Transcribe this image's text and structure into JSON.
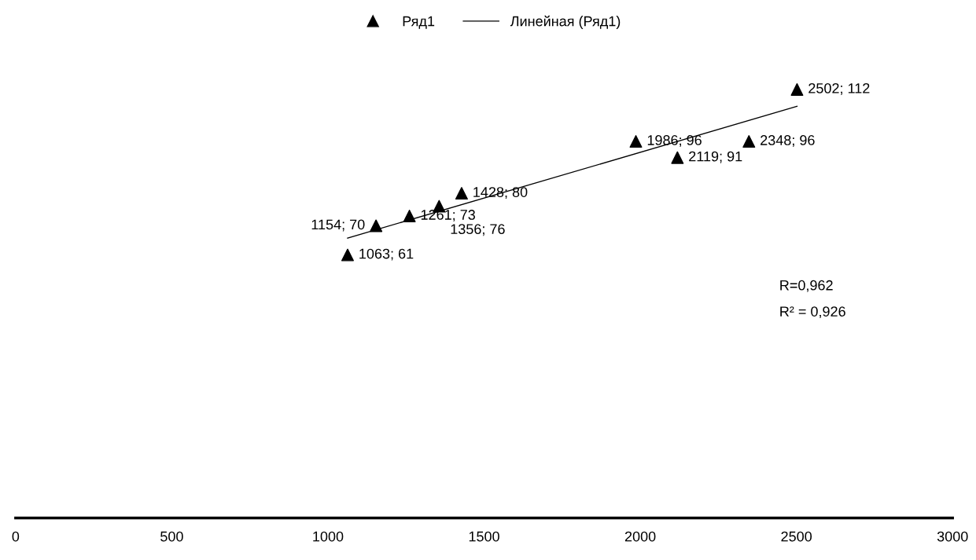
{
  "chart_data": {
    "type": "scatter",
    "series": [
      {
        "name": "Ряд1",
        "color": "#000000",
        "marker": "triangle",
        "x": [
          1063,
          1154,
          1261,
          1356,
          1428,
          1986,
          2119,
          2348,
          2502
        ],
        "values": [
          61,
          70,
          73,
          76,
          80,
          96,
          91,
          96,
          112
        ],
        "value_labels": [
          "1063; 61",
          "1154; 70",
          "1261; 73",
          "1356; 76",
          "1428; 80",
          "1986; 96",
          "2119; 91",
          "2348; 96",
          "2502; 112"
        ]
      },
      {
        "name": "Линейная (Ряд1)",
        "type": "line",
        "color": "#000000",
        "marker": "none",
        "line_style": "solid",
        "x": [
          1063,
          2502
        ],
        "values": [
          66.2,
          106.8
        ]
      }
    ],
    "xlim": [
      0,
      3000
    ],
    "xticks": [
      0,
      500,
      1000,
      1500,
      2000,
      2500,
      3000
    ],
    "tick_labels": "x",
    "grid": false,
    "legend": "top",
    "annotations": [
      "R=0,962",
      "R² = 0,926"
    ]
  }
}
